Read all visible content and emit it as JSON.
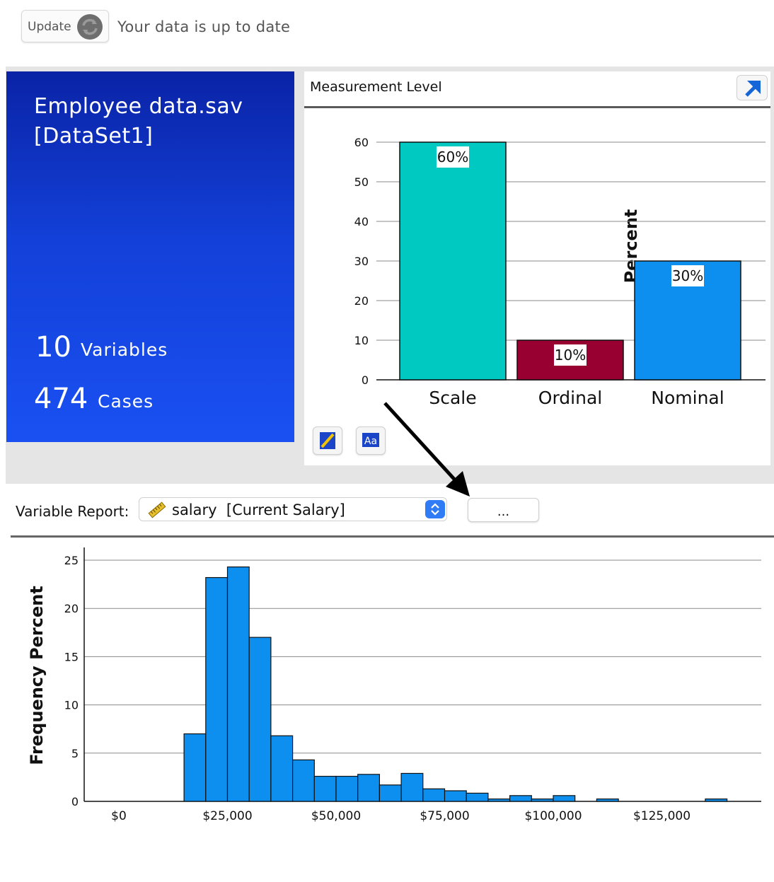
{
  "toolbar": {
    "update_label": "Update",
    "refresh_icon": "refresh-icon",
    "status_text": "Your data is up to date"
  },
  "dataset": {
    "file_name": "Employee data.sav",
    "dataset_name": "[DataSet1]",
    "variables_count": "10",
    "variables_label": "Variables",
    "cases_count": "474",
    "cases_label": "Cases",
    "tile_color": "#1340d8"
  },
  "measurement_panel": {
    "title": "Measurement Level",
    "expand_icon": "expand-arrow-icon",
    "tools": [
      "edit-chart-icon",
      "text-style-icon"
    ]
  },
  "variable_report": {
    "label": "Variable Report:",
    "variable_icon": "scale-ruler-icon",
    "selected_variable": "salary  [Current Salary]",
    "more_label": "..."
  },
  "annotation": {
    "arrow": "black arrow pointing to the ... button"
  },
  "chart_data": [
    {
      "type": "bar",
      "ylabel": "Percent",
      "xlabel": "",
      "categories": [
        "Scale",
        "Ordinal",
        "Nominal"
      ],
      "values": [
        60,
        10,
        30
      ],
      "data_labels": [
        "60%",
        "10%",
        "30%"
      ],
      "colors": [
        "#00c9c2",
        "#990032",
        "#0d8ff0"
      ],
      "ylim": [
        0,
        60
      ],
      "yticks": [
        "0",
        "10",
        "20",
        "30",
        "40",
        "50",
        "60"
      ],
      "grid": true
    },
    {
      "type": "bar",
      "subtype": "histogram",
      "ylabel": "Frequency Percent",
      "xlabel": "",
      "x_tick_values": [
        0,
        25000,
        50000,
        75000,
        100000,
        125000
      ],
      "x_tick_labels": [
        "$0",
        "$25,000",
        "$50,000",
        "$75,000",
        "$100,000",
        "$125,000"
      ],
      "xlim": [
        0,
        145000
      ],
      "ylim": [
        0,
        25
      ],
      "yticks": [
        "0",
        "5",
        "10",
        "15",
        "20",
        "25"
      ],
      "bin_width": 5000,
      "bins": [
        {
          "x0": 15000,
          "value": 7.0
        },
        {
          "x0": 20000,
          "value": 23.2
        },
        {
          "x0": 25000,
          "value": 24.3
        },
        {
          "x0": 30000,
          "value": 17.0
        },
        {
          "x0": 35000,
          "value": 6.8
        },
        {
          "x0": 40000,
          "value": 4.3
        },
        {
          "x0": 45000,
          "value": 2.6
        },
        {
          "x0": 50000,
          "value": 2.6
        },
        {
          "x0": 55000,
          "value": 2.8
        },
        {
          "x0": 60000,
          "value": 1.7
        },
        {
          "x0": 65000,
          "value": 2.9
        },
        {
          "x0": 70000,
          "value": 1.3
        },
        {
          "x0": 75000,
          "value": 1.1
        },
        {
          "x0": 80000,
          "value": 0.85
        },
        {
          "x0": 85000,
          "value": 0.25
        },
        {
          "x0": 90000,
          "value": 0.6
        },
        {
          "x0": 95000,
          "value": 0.25
        },
        {
          "x0": 100000,
          "value": 0.6
        },
        {
          "x0": 110000,
          "value": 0.25
        },
        {
          "x0": 135000,
          "value": 0.25
        }
      ],
      "color": "#0d8ff0",
      "grid": true
    }
  ]
}
